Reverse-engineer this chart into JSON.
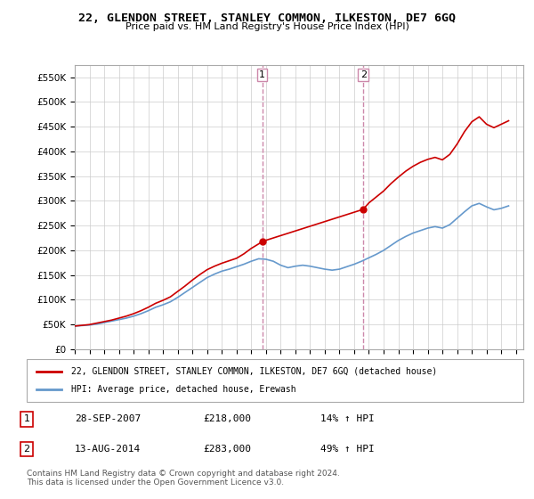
{
  "title": "22, GLENDON STREET, STANLEY COMMON, ILKESTON, DE7 6GQ",
  "subtitle": "Price paid vs. HM Land Registry's House Price Index (HPI)",
  "ylabel": "",
  "xlim_start": 1995.0,
  "xlim_end": 2025.5,
  "ylim": [
    0,
    575000
  ],
  "yticks": [
    0,
    50000,
    100000,
    150000,
    200000,
    250000,
    300000,
    350000,
    400000,
    450000,
    500000,
    550000
  ],
  "sale1_x": 2007.75,
  "sale1_y": 218000,
  "sale1_label": "1",
  "sale2_x": 2014.62,
  "sale2_y": 283000,
  "sale2_label": "2",
  "red_line_color": "#cc0000",
  "blue_line_color": "#6699cc",
  "legend_red": "22, GLENDON STREET, STANLEY COMMON, ILKESTON, DE7 6GQ (detached house)",
  "legend_blue": "HPI: Average price, detached house, Erewash",
  "table_rows": [
    [
      "1",
      "28-SEP-2007",
      "£218,000",
      "14% ↑ HPI"
    ],
    [
      "2",
      "13-AUG-2014",
      "£283,000",
      "49% ↑ HPI"
    ]
  ],
  "footnote": "Contains HM Land Registry data © Crown copyright and database right 2024.\nThis data is licensed under the Open Government Licence v3.0.",
  "background_color": "#ffffff",
  "plot_bg_color": "#ffffff",
  "grid_color": "#cccccc",
  "vline_color": "#cc88aa"
}
